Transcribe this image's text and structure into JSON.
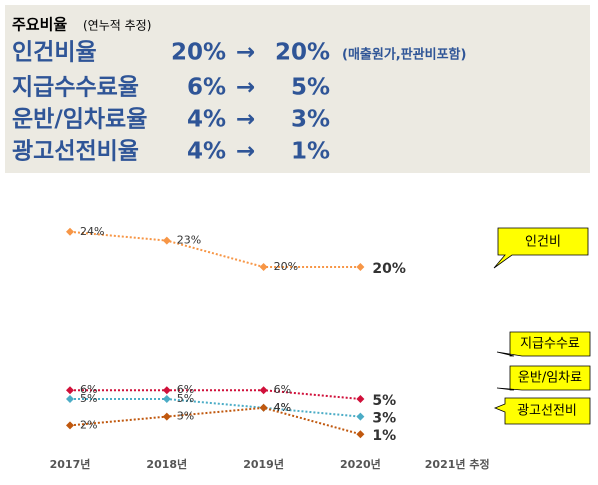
{
  "header": {
    "title": "주요비율",
    "subtitle": "(연누적 추정)",
    "rows": [
      {
        "name": "인건비율",
        "from": "20%",
        "arrow": "→",
        "to": "20%",
        "note": "(매출원가,판관비포함)"
      },
      {
        "name": "지급수수료율",
        "from": "6%",
        "arrow": "→",
        "to": "5%"
      },
      {
        "name": "운반/임차료율",
        "from": "4%",
        "arrow": "→",
        "to": "3%"
      },
      {
        "name": "광고선전비율",
        "from": "4%",
        "arrow": "→",
        "to": "1%"
      }
    ]
  },
  "chart_data": {
    "type": "line",
    "categories": [
      "2017년",
      "2018년",
      "2019년",
      "2020년",
      "2021년 추정"
    ],
    "ylim": [
      0,
      25
    ],
    "series": [
      {
        "name": "인건비",
        "color": "#f79646",
        "values": [
          24,
          23,
          20,
          20,
          null
        ],
        "value_labels": [
          "24%",
          "23%",
          "20%",
          "20%",
          null
        ]
      },
      {
        "name": "지급수수료",
        "color": "#d0103a",
        "values": [
          6,
          6,
          6,
          5,
          null
        ],
        "value_labels": [
          "6%",
          "6%",
          "6%",
          "5%",
          null
        ]
      },
      {
        "name": "운반/임차료",
        "color": "#4bacc6",
        "values": [
          5,
          5,
          4,
          3,
          null
        ],
        "value_labels": [
          "5%",
          "5%",
          "4%",
          "3%",
          null
        ]
      },
      {
        "name": "광고선전비",
        "color": "#c0580e",
        "values": [
          2,
          3,
          4,
          1,
          null
        ],
        "value_labels": [
          "2%",
          "3%",
          "4%",
          "1%",
          null
        ]
      }
    ]
  }
}
